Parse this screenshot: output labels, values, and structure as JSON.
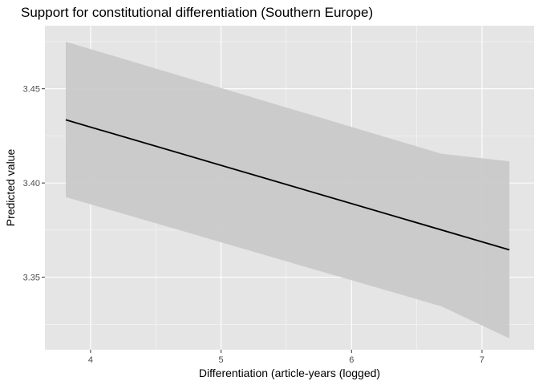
{
  "chart_data": {
    "type": "line",
    "title": "Support for constitutional differentiation (Southern Europe)",
    "xlabel": "Differentiation (article-years (logged)",
    "ylabel": "Predicted value",
    "xlim": [
      3.65,
      7.4
    ],
    "ylim": [
      3.3115,
      3.4835
    ],
    "x_ticks": [
      4,
      5,
      6,
      7
    ],
    "y_ticks": [
      3.35,
      3.4,
      3.45
    ],
    "x_tick_labels": [
      "4",
      "5",
      "6",
      "7"
    ],
    "y_tick_labels": [
      "3.35",
      "3.40",
      "3.45"
    ],
    "grid": true,
    "series": [
      {
        "x": [
          3.81,
          7.21
        ],
        "y": [
          3.4335,
          3.3645
        ]
      }
    ],
    "confidence_band": {
      "x": [
        3.81,
        6.69,
        7.21
      ],
      "upper": [
        3.475,
        3.4155,
        3.4115
      ],
      "lower": [
        3.3925,
        3.3345,
        3.3175
      ]
    },
    "colors": {
      "panel": "#e5e5e5",
      "grid_major": "#ffffff",
      "band": "#c8c8c8",
      "line": "#000000"
    }
  }
}
